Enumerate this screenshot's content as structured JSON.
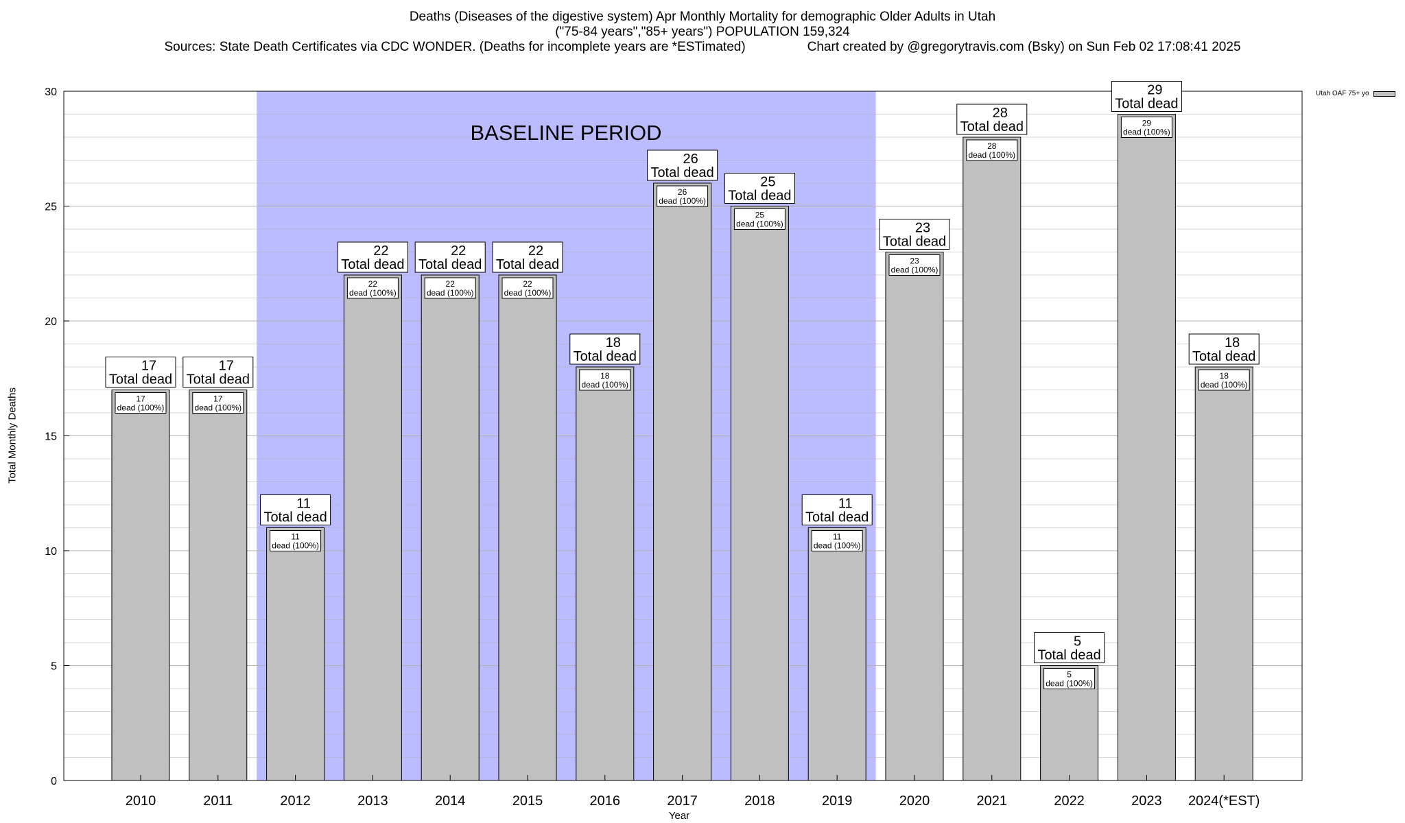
{
  "title": {
    "line1": "Deaths (Diseases of the digestive system) Apr Monthly Mortality for demographic Older Adults in Utah",
    "line2": "(\"75-84 years\",\"85+ years\") POPULATION 159,324",
    "sources": "Sources: State Death Certificates via CDC WONDER. (Deaths for incomplete years are *ESTimated)",
    "credit": "Chart created by @gregorytravis.com (Bsky) on Sun Feb 02 17:08:41 2025"
  },
  "legend": {
    "label": "Utah OAF 75+ yo"
  },
  "colors": {
    "bar": "#c0c0c0",
    "baseline": "#bbbbff",
    "grid": "#b0b0b0"
  },
  "chart_data": {
    "type": "bar",
    "xlabel": "Year",
    "ylabel": "Total Monthly Deaths",
    "ylim": [
      0,
      30
    ],
    "yticks": [
      0,
      5,
      10,
      15,
      20,
      25,
      30
    ],
    "grid": true,
    "legend_position": "top-right",
    "categories": [
      "2010",
      "2011",
      "2012",
      "2013",
      "2014",
      "2015",
      "2016",
      "2017",
      "2018",
      "2019",
      "2020",
      "2021",
      "2022",
      "2023",
      "2024(*EST)"
    ],
    "series": [
      {
        "name": "Utah OAF 75+ yo",
        "values": [
          17,
          17,
          11,
          22,
          22,
          22,
          18,
          26,
          25,
          11,
          23,
          28,
          5,
          29,
          18
        ]
      }
    ],
    "total_label": "Total dead",
    "inner_label": "dead (100%)",
    "baseline": {
      "label": "BASELINE PERIOD",
      "from": "2012",
      "to": "2019"
    }
  }
}
